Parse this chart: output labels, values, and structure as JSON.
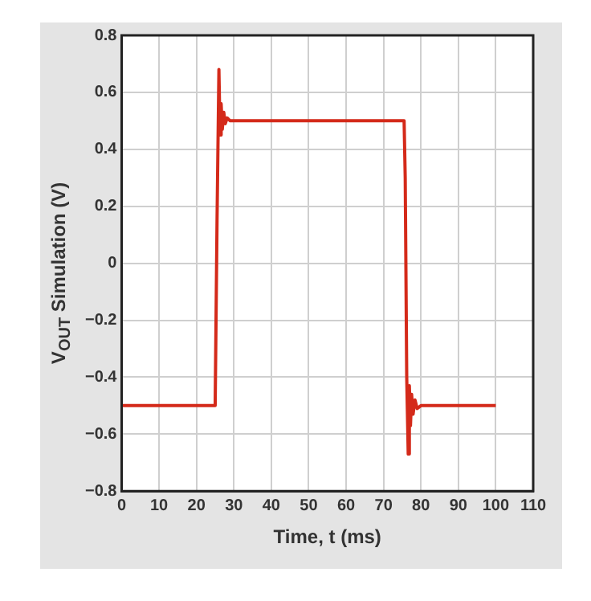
{
  "chart_data": {
    "type": "line",
    "xlabel": "Time, t (ms)",
    "ylabel": "V$_{OUT}$ Simulation (V)",
    "xlim": [
      0,
      110
    ],
    "xticks": [
      0,
      10,
      20,
      30,
      40,
      50,
      60,
      70,
      80,
      90,
      100,
      110
    ],
    "ylim": [
      -0.8,
      0.8
    ],
    "yticks": [
      {
        "value": -0.8,
        "label": "−0.8"
      },
      {
        "value": -0.6,
        "label": "−0.6"
      },
      {
        "value": -0.4,
        "label": "−0.4"
      },
      {
        "value": -0.2,
        "label": "−0.2"
      },
      0,
      0.2,
      0.4,
      0.6,
      0.8
    ],
    "grid": true,
    "marker": "none",
    "line_style": "solid",
    "series": [
      {
        "color": "#d42a1a",
        "x": [
          0,
          25,
          25.5,
          26,
          26.3,
          26.6,
          26.9,
          27.3,
          27.7,
          28.2,
          29,
          75.5,
          75.8,
          76.2,
          76.6,
          76.9,
          77.2,
          77.5,
          77.9,
          78.4,
          79,
          80,
          100
        ],
        "values": [
          -0.5,
          -0.5,
          0.15,
          0.68,
          0.45,
          0.56,
          0.47,
          0.53,
          0.49,
          0.51,
          0.5,
          0.5,
          0.3,
          -0.4,
          -0.67,
          -0.43,
          -0.57,
          -0.46,
          -0.53,
          -0.48,
          -0.51,
          -0.5,
          -0.5
        ]
      }
    ]
  }
}
